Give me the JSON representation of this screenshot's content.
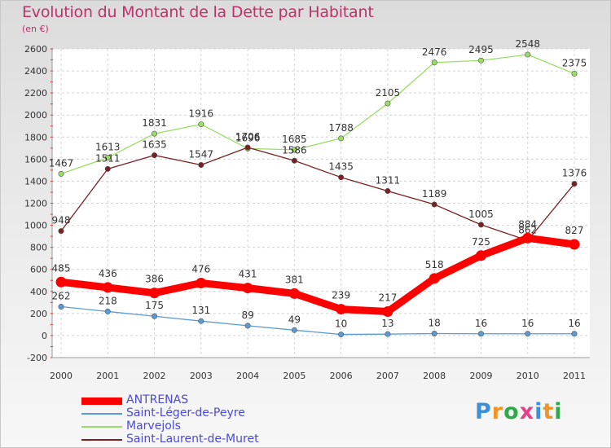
{
  "title": "Evolution du Montant de la Dette par Habitant",
  "subtitle": "(en €)",
  "logo": {
    "text": "Proxiti",
    "letter_colors": [
      "#3d8fd8",
      "#f09428",
      "#2fa84a",
      "#e53f8a",
      "#3d8fd8",
      "#f09428",
      "#2fa84a"
    ]
  },
  "chart_data": {
    "type": "line",
    "title": "Evolution du Montant de la Dette par Habitant",
    "subtitle": "(en €)",
    "xlabel": "",
    "ylabel": "",
    "x": [
      "2000",
      "2001",
      "2002",
      "2003",
      "2004",
      "2005",
      "2006",
      "2007",
      "2008",
      "2009",
      "2010",
      "2011"
    ],
    "ylim": [
      -200,
      2600
    ],
    "yticks": [
      -200,
      0,
      200,
      400,
      600,
      800,
      1000,
      1200,
      1400,
      1600,
      1800,
      2000,
      2200,
      2400,
      2600
    ],
    "grid": true,
    "legend_position": "bottom-left",
    "series": [
      {
        "name": "ANTRENAS",
        "color": "#ff0000",
        "emphasis": true,
        "values": [
          485,
          436,
          386,
          476,
          431,
          381,
          239,
          217,
          518,
          725,
          884,
          827
        ]
      },
      {
        "name": "Saint-Léger-de-Peyre",
        "color": "#5b9bd5",
        "values": [
          262,
          218,
          175,
          131,
          89,
          49,
          10,
          13,
          18,
          16,
          16,
          16
        ]
      },
      {
        "name": "Marvejols",
        "color": "#99dd66",
        "values": [
          1467,
          1613,
          1831,
          1916,
          1696,
          1685,
          1788,
          2105,
          2476,
          2495,
          2548,
          2375
        ]
      },
      {
        "name": "Saint-Laurent-de-Muret",
        "color": "#7a1f22",
        "values": [
          948,
          1511,
          1635,
          1547,
          1706,
          1586,
          1435,
          1311,
          1189,
          1005,
          862,
          1376
        ]
      }
    ]
  }
}
